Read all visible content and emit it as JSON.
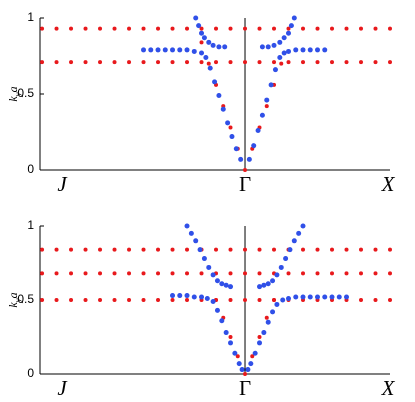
{
  "chart_data": [
    {
      "type": "scatter",
      "ylabel": [
        "k",
        "y",
        "a"
      ],
      "xlim": [
        -1.414,
        1
      ],
      "ylim": [
        0,
        1
      ],
      "xticks": [
        {
          "value": -1.414,
          "label": "J"
        },
        {
          "value": 0,
          "label": "Γ"
        },
        {
          "value": 1,
          "label": "X"
        }
      ],
      "yticks": [
        0,
        0.5,
        1
      ],
      "series": [
        {
          "color": "#e8191c",
          "x": [
            -1.4,
            -1.3,
            -1.2,
            -1.1,
            -1.0,
            -0.9,
            -0.8,
            -0.7,
            -0.6,
            -0.5,
            -0.4,
            -0.3,
            -0.2,
            -0.1,
            0,
            0.1,
            0.2,
            0.3,
            0.4,
            0.5,
            0.6,
            0.7,
            0.8,
            0.9,
            1.0
          ],
          "values": [
            0.93,
            0.93,
            0.93,
            0.93,
            0.93,
            0.93,
            0.93,
            0.93,
            0.93,
            0.93,
            0.93,
            0.93,
            0.93,
            0.93,
            0.93,
            0.93,
            0.93,
            0.93,
            0.93,
            0.93,
            0.93,
            0.93,
            0.93,
            0.93,
            0.93
          ]
        },
        {
          "color": "#e8191c",
          "x": [
            -1.4,
            -1.3,
            -1.2,
            -1.1,
            -1.0,
            -0.9,
            -0.8,
            -0.7,
            -0.6,
            -0.5,
            -0.4,
            -0.3,
            -0.2,
            -0.1,
            0,
            0.1,
            0.2,
            0.3,
            0.4,
            0.5,
            0.6,
            0.7,
            0.8,
            0.9,
            1.0
          ],
          "values": [
            0.71,
            0.71,
            0.71,
            0.71,
            0.71,
            0.71,
            0.71,
            0.71,
            0.71,
            0.71,
            0.71,
            0.71,
            0.71,
            0.71,
            0.71,
            0.71,
            0.71,
            0.71,
            0.71,
            0.71,
            0.71,
            0.71,
            0.71,
            0.71,
            0.71
          ]
        },
        {
          "color": "#e8191c",
          "x": [
            -0.3,
            -0.25,
            -0.2,
            -0.15,
            -0.1,
            -0.05,
            0,
            0.05,
            0.1,
            0.15,
            0.2,
            0.25
          ],
          "values": [
            0.84,
            0.7,
            0.56,
            0.42,
            0.28,
            0.14,
            0,
            0.14,
            0.28,
            0.42,
            0.56,
            0.7
          ]
        },
        {
          "color": "#3050e8",
          "x": [
            -0.7,
            -0.65,
            -0.6,
            -0.55,
            -0.5,
            -0.45,
            -0.4,
            -0.35,
            -0.3,
            -0.27,
            -0.24,
            -0.21,
            -0.18,
            -0.15,
            -0.12,
            -0.09,
            -0.06,
            -0.03
          ],
          "values": [
            0.79,
            0.79,
            0.79,
            0.79,
            0.79,
            0.79,
            0.79,
            0.78,
            0.77,
            0.74,
            0.67,
            0.58,
            0.49,
            0.4,
            0.31,
            0.22,
            0.14,
            0.07
          ]
        },
        {
          "color": "#3050e8",
          "x": [
            0.03,
            0.06,
            0.09,
            0.12,
            0.15,
            0.18,
            0.21,
            0.24,
            0.27,
            0.3,
            0.35,
            0.4,
            0.45,
            0.5,
            0.55
          ],
          "values": [
            0.07,
            0.16,
            0.26,
            0.36,
            0.46,
            0.56,
            0.66,
            0.74,
            0.77,
            0.78,
            0.79,
            0.79,
            0.79,
            0.79,
            0.79
          ]
        },
        {
          "color": "#3050e8",
          "x": [
            -0.34,
            -0.32,
            -0.3,
            -0.28,
            -0.25,
            -0.22,
            -0.18,
            -0.14
          ],
          "values": [
            1,
            0.95,
            0.9,
            0.87,
            0.84,
            0.82,
            0.81,
            0.81
          ]
        },
        {
          "color": "#3050e8",
          "x": [
            0.12,
            0.16,
            0.2,
            0.24,
            0.27,
            0.3,
            0.32,
            0.34
          ],
          "values": [
            0.81,
            0.81,
            0.82,
            0.84,
            0.87,
            0.9,
            0.95,
            1
          ]
        }
      ]
    },
    {
      "type": "scatter",
      "ylabel": [
        "k",
        "y",
        "a"
      ],
      "xlim": [
        -1.414,
        1
      ],
      "ylim": [
        0,
        1
      ],
      "xticks": [
        {
          "value": -1.414,
          "label": "J"
        },
        {
          "value": 0,
          "label": "Γ"
        },
        {
          "value": 1,
          "label": "X"
        }
      ],
      "yticks": [
        0,
        0.5,
        1
      ],
      "series": [
        {
          "color": "#e8191c",
          "x": [
            -1.4,
            -1.3,
            -1.2,
            -1.1,
            -1.0,
            -0.9,
            -0.8,
            -0.7,
            -0.6,
            -0.5,
            -0.4,
            -0.3,
            -0.2,
            -0.1,
            0,
            0.1,
            0.2,
            0.3,
            0.4,
            0.5,
            0.6,
            0.7,
            0.8,
            0.9,
            1.0
          ],
          "values": [
            0.84,
            0.84,
            0.84,
            0.84,
            0.84,
            0.84,
            0.84,
            0.84,
            0.84,
            0.84,
            0.84,
            0.84,
            0.84,
            0.84,
            0.84,
            0.84,
            0.84,
            0.84,
            0.84,
            0.84,
            0.84,
            0.84,
            0.84,
            0.84,
            0.84
          ]
        },
        {
          "color": "#e8191c",
          "x": [
            -1.4,
            -1.3,
            -1.2,
            -1.1,
            -1.0,
            -0.9,
            -0.8,
            -0.7,
            -0.6,
            -0.5,
            -0.4,
            -0.3,
            -0.2,
            -0.1,
            0,
            0.1,
            0.2,
            0.3,
            0.4,
            0.5,
            0.6,
            0.7,
            0.8,
            0.9,
            1.0
          ],
          "values": [
            0.68,
            0.68,
            0.68,
            0.68,
            0.68,
            0.68,
            0.68,
            0.68,
            0.68,
            0.68,
            0.68,
            0.68,
            0.68,
            0.68,
            0.68,
            0.68,
            0.68,
            0.68,
            0.68,
            0.68,
            0.68,
            0.68,
            0.68,
            0.68,
            0.68
          ]
        },
        {
          "color": "#e8191c",
          "x": [
            -1.4,
            -1.3,
            -1.2,
            -1.1,
            -1.0,
            -0.9,
            -0.8,
            -0.7,
            -0.6,
            -0.5,
            -0.4,
            -0.3,
            -0.2,
            -0.1,
            0,
            0.1,
            0.2,
            0.3,
            0.4,
            0.5,
            0.6,
            0.7,
            0.8,
            0.9,
            1.0
          ],
          "values": [
            0.5,
            0.5,
            0.5,
            0.5,
            0.5,
            0.5,
            0.5,
            0.5,
            0.5,
            0.5,
            0.5,
            0.5,
            0.5,
            0.5,
            0.5,
            0.5,
            0.5,
            0.5,
            0.5,
            0.5,
            0.5,
            0.5,
            0.5,
            0.5,
            0.5
          ]
        },
        {
          "color": "#e8191c",
          "x": [
            -0.2,
            -0.15,
            -0.1,
            -0.05,
            0,
            0.05,
            0.1,
            0.15,
            0.2
          ],
          "values": [
            0.5,
            0.38,
            0.25,
            0.12,
            0,
            0.12,
            0.25,
            0.38,
            0.5
          ]
        },
        {
          "color": "#3050e8",
          "x": [
            -0.5,
            -0.45,
            -0.4,
            -0.35,
            -0.3,
            -0.26,
            -0.22,
            -0.19,
            -0.16,
            -0.13,
            -0.1,
            -0.07,
            -0.04,
            -0.02
          ],
          "values": [
            0.53,
            0.53,
            0.53,
            0.52,
            0.52,
            0.51,
            0.49,
            0.43,
            0.36,
            0.28,
            0.21,
            0.14,
            0.07,
            0.03
          ]
        },
        {
          "color": "#3050e8",
          "x": [
            0.02,
            0.04,
            0.07,
            0.1,
            0.13,
            0.16,
            0.19,
            0.22,
            0.26,
            0.3,
            0.35,
            0.4,
            0.45,
            0.5,
            0.55,
            0.6,
            0.65,
            0.7
          ],
          "values": [
            0.03,
            0.07,
            0.14,
            0.21,
            0.28,
            0.35,
            0.42,
            0.47,
            0.5,
            0.51,
            0.52,
            0.52,
            0.52,
            0.52,
            0.52,
            0.52,
            0.52,
            0.52
          ]
        },
        {
          "color": "#3050e8",
          "x": [
            -0.4,
            -0.37,
            -0.34,
            -0.31,
            -0.28,
            -0.25,
            -0.22,
            -0.19,
            -0.16,
            -0.13,
            -0.1
          ],
          "values": [
            1,
            0.95,
            0.9,
            0.84,
            0.78,
            0.72,
            0.67,
            0.63,
            0.61,
            0.6,
            0.59
          ]
        },
        {
          "color": "#3050e8",
          "x": [
            0.1,
            0.13,
            0.16,
            0.19,
            0.22,
            0.25,
            0.28,
            0.31,
            0.34,
            0.37,
            0.4
          ],
          "values": [
            0.59,
            0.6,
            0.61,
            0.63,
            0.67,
            0.72,
            0.78,
            0.84,
            0.9,
            0.95,
            1
          ]
        }
      ]
    }
  ]
}
